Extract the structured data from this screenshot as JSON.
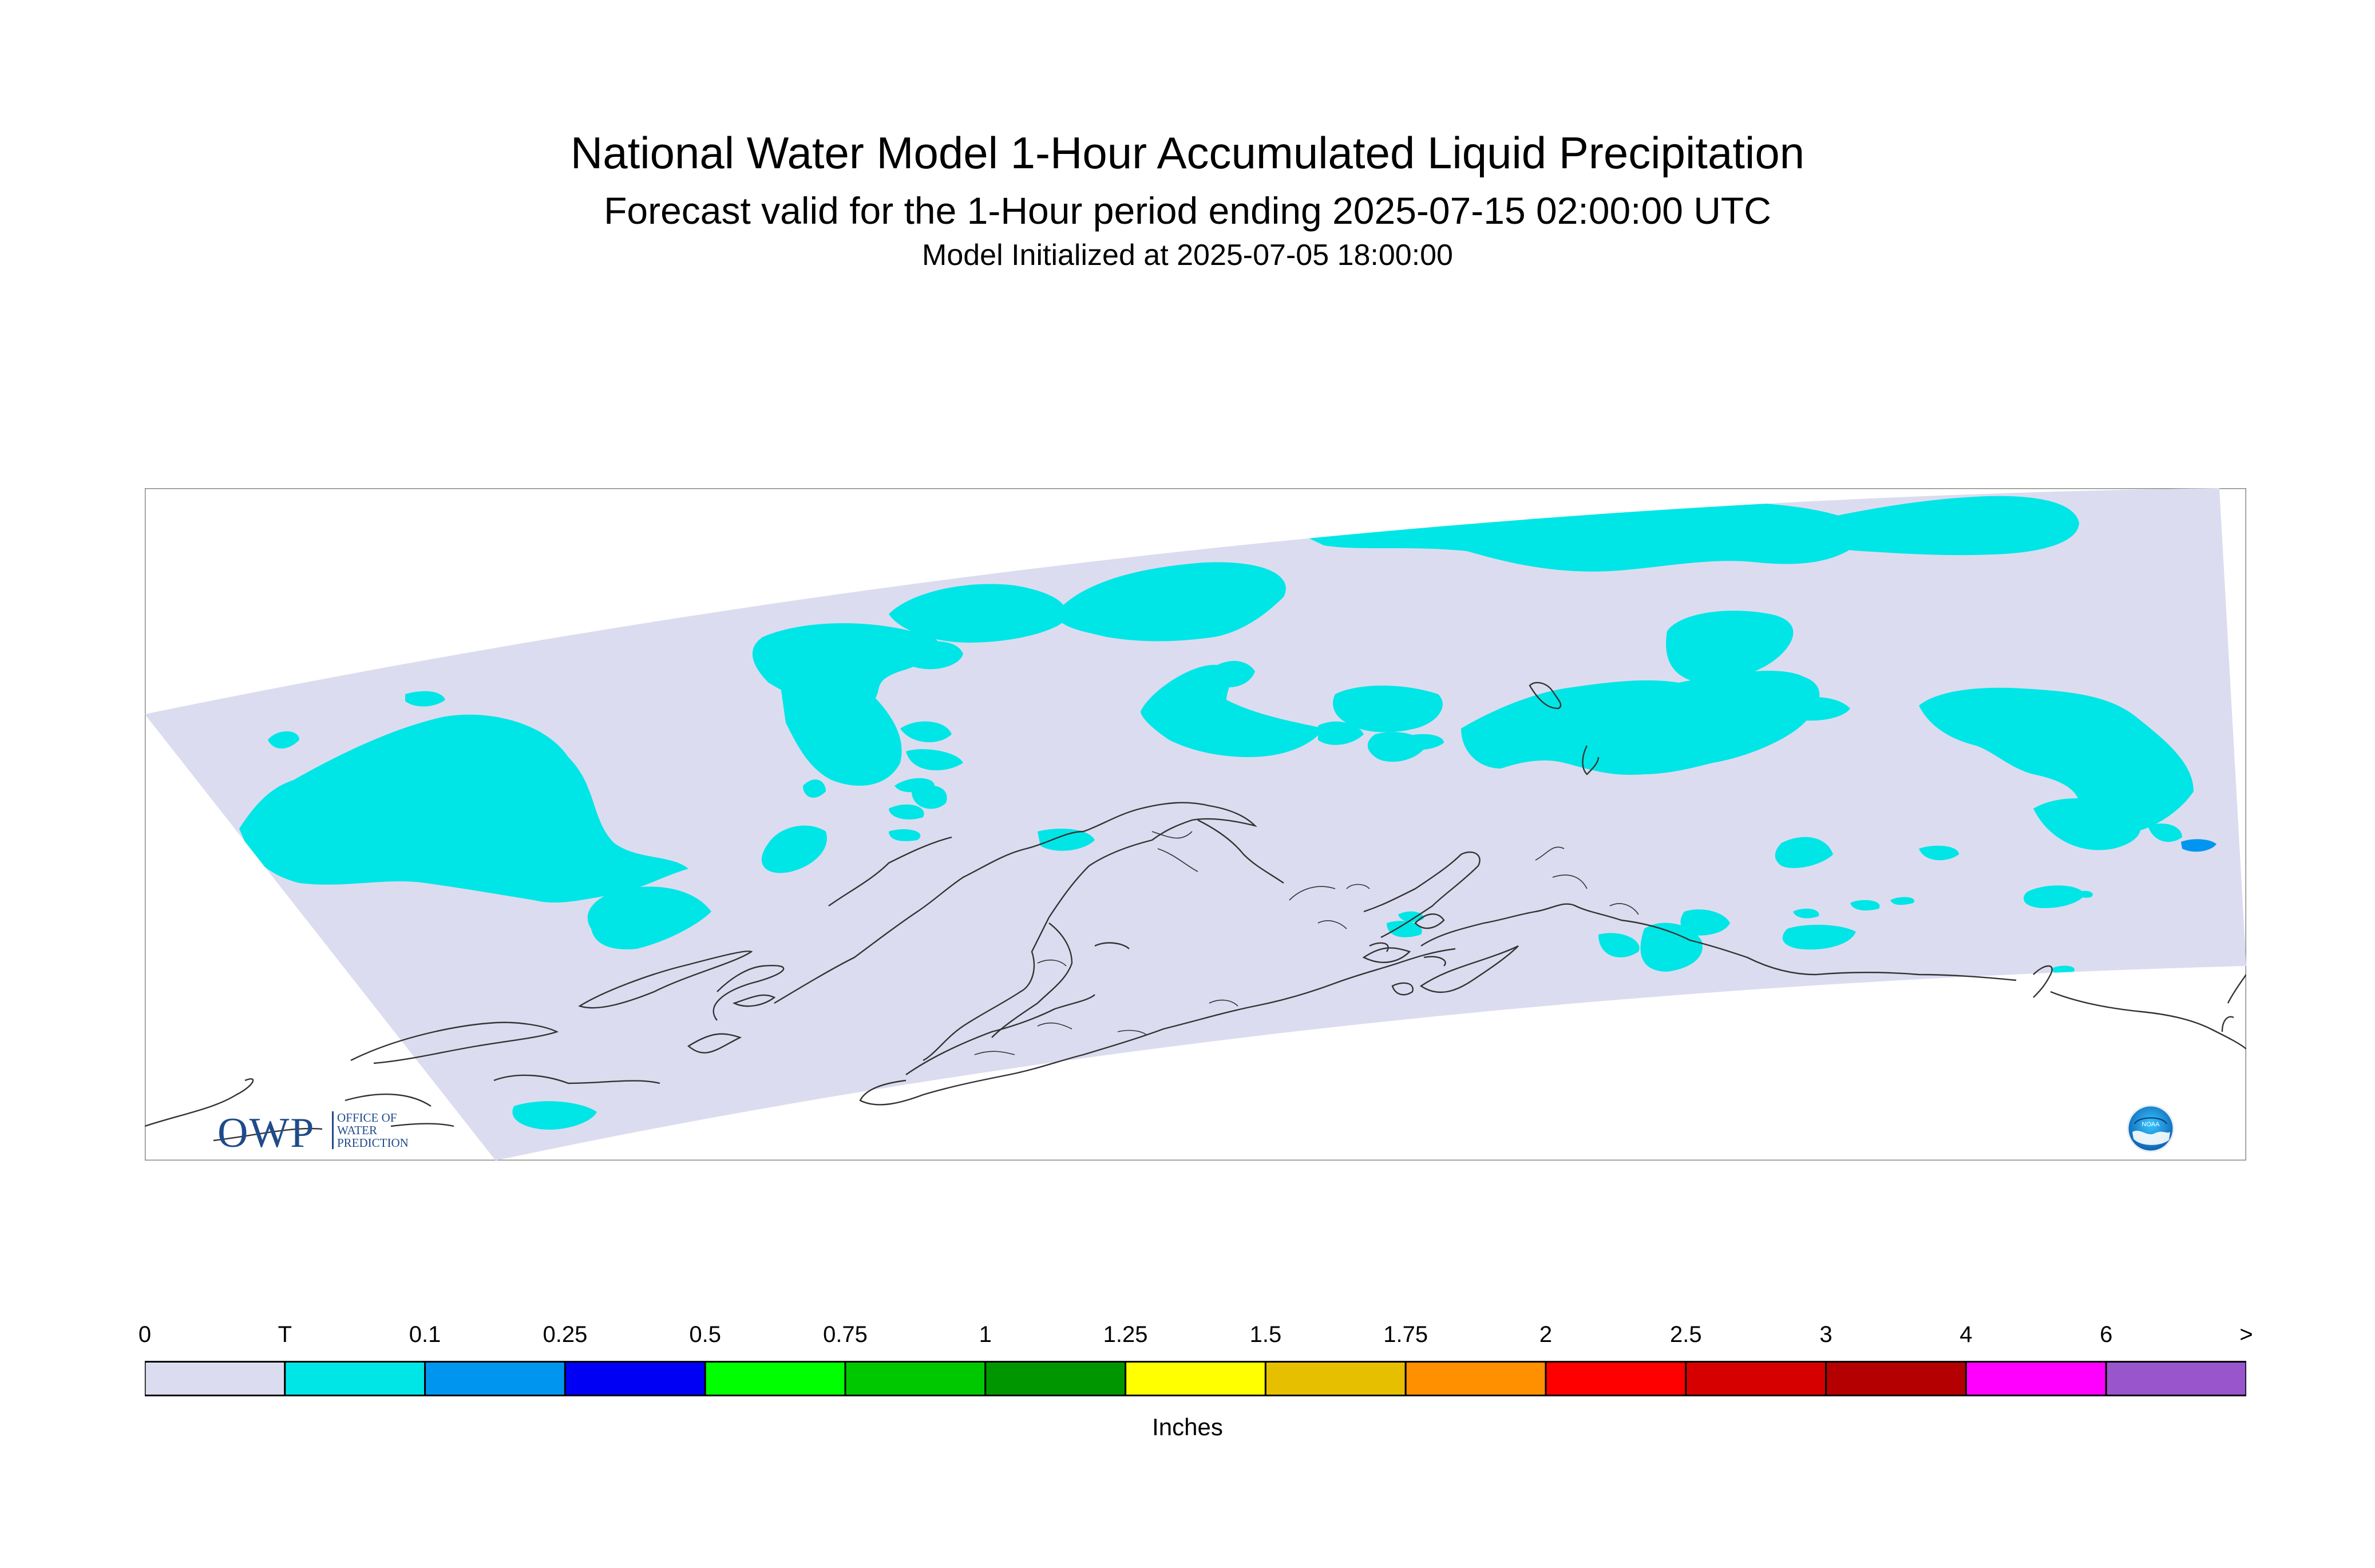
{
  "header": {
    "title": "National Water Model 1-Hour Accumulated Liquid Precipitation",
    "subtitle": "Forecast valid for the 1-Hour period ending 2025-07-15 02:00:00 UTC",
    "init": "Model Initialized at 2025-07-05 18:00:00"
  },
  "legend": {
    "labels": [
      "0",
      "T",
      "0.1",
      "0.25",
      "0.5",
      "0.75",
      "1",
      "1.25",
      "1.5",
      "1.75",
      "2",
      "2.5",
      "3",
      "4",
      "6",
      ">"
    ],
    "colors": [
      "#dcdcf0",
      "#00e6e6",
      "#0096f0",
      "#0000f5",
      "#00ff00",
      "#00c800",
      "#009600",
      "#ffff00",
      "#e6c000",
      "#ff9000",
      "#ff0000",
      "#d60000",
      "#b40000",
      "#ff00ff",
      "#9955cc"
    ],
    "units": "Inches"
  },
  "map": {
    "background": "#dcdcf0",
    "precip_color": "#00e6e6",
    "heavy_color": "#0096f0",
    "coast_color": "#333333"
  },
  "logos": {
    "owp_big": "OWP",
    "owp_small": [
      "OFFICE OF",
      "WATER",
      "PREDICTION"
    ],
    "noaa_label": "NOAA"
  }
}
